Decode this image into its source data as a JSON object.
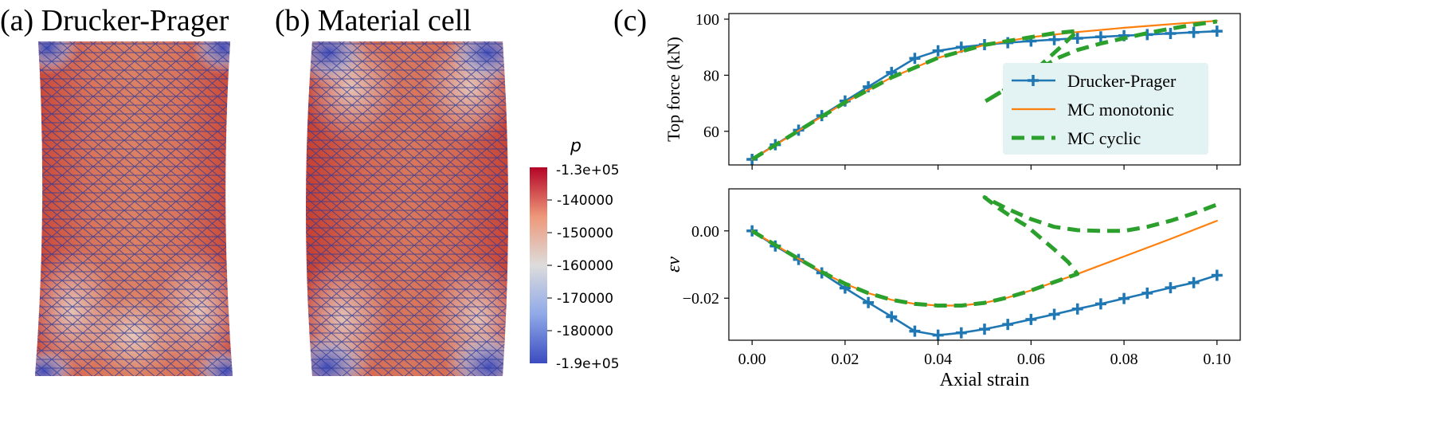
{
  "panel_a": {
    "label": "(a) Drucker-Prager"
  },
  "panel_b": {
    "label": "(b) Material cell"
  },
  "panel_c": {
    "label": "(c)"
  },
  "colorbar": {
    "title": "p",
    "max_label": "-1.3e+05",
    "min_label": "-1.9e+05",
    "vmax": -130000,
    "vmin": -190000,
    "ticks": [
      {
        "value": -140000,
        "label": "-140000"
      },
      {
        "value": -150000,
        "label": "-150000"
      },
      {
        "value": -160000,
        "label": "-160000"
      },
      {
        "value": -170000,
        "label": "-170000"
      },
      {
        "value": -180000,
        "label": "-180000"
      }
    ],
    "colors": [
      "#3b4cc0",
      "#dddcdc",
      "#b40426"
    ]
  },
  "chart_data": [
    {
      "type": "line",
      "xlabel": "",
      "ylabel": "Top force (kN)",
      "xlim": [
        -0.005,
        0.105
      ],
      "ylim": [
        48,
        102
      ],
      "xticks": [
        0.0,
        0.02,
        0.04,
        0.06,
        0.08,
        0.1
      ],
      "yticks": [
        {
          "value": 60,
          "label": "60"
        },
        {
          "value": 80,
          "label": "80"
        },
        {
          "value": 100,
          "label": "100"
        }
      ],
      "legend_position": "right",
      "series": [
        {
          "name": "Drucker-Prager",
          "color": "#1f77b4",
          "style": "solid-plus",
          "x": [
            0.0,
            0.005,
            0.01,
            0.015,
            0.02,
            0.025,
            0.03,
            0.035,
            0.04,
            0.045,
            0.05,
            0.055,
            0.06,
            0.065,
            0.07,
            0.075,
            0.08,
            0.085,
            0.09,
            0.095,
            0.1
          ],
          "y": [
            50.0,
            55.2,
            60.4,
            65.6,
            70.8,
            75.9,
            81.0,
            86.0,
            88.7,
            90.0,
            90.9,
            91.6,
            92.2,
            92.7,
            93.2,
            93.7,
            94.1,
            94.5,
            94.9,
            95.3,
            95.7
          ]
        },
        {
          "name": "MC monotonic",
          "color": "#ff7f0e",
          "style": "solid-thin",
          "x": [
            0.0,
            0.01,
            0.02,
            0.03,
            0.04,
            0.05,
            0.06,
            0.07,
            0.08,
            0.09,
            0.1
          ],
          "y": [
            50.0,
            60.2,
            70.3,
            79.2,
            86.2,
            90.8,
            93.6,
            95.4,
            96.9,
            98.2,
            99.4
          ]
        },
        {
          "name": "MC cyclic",
          "color": "#2ca02c",
          "style": "dashed-thick",
          "x": [
            0.0,
            0.01,
            0.02,
            0.03,
            0.04,
            0.05,
            0.06,
            0.065,
            0.07,
            0.066,
            0.062,
            0.058,
            0.054,
            0.05,
            0.05,
            0.054,
            0.058,
            0.062,
            0.066,
            0.07,
            0.075,
            0.08,
            0.085,
            0.09,
            0.095,
            0.1
          ],
          "y": [
            50.0,
            60.2,
            70.3,
            79.2,
            86.2,
            90.8,
            93.6,
            95.0,
            95.8,
            89.5,
            83.5,
            78.5,
            74.5,
            70.5,
            70.5,
            74.5,
            78.5,
            82.5,
            86.3,
            89.0,
            91.3,
            93.2,
            95.0,
            96.6,
            98.0,
            99.2
          ]
        }
      ]
    },
    {
      "type": "line",
      "xlabel": "Axial strain",
      "ylabel": "εv",
      "xlim": [
        -0.005,
        0.105
      ],
      "ylim": [
        -0.0325,
        0.0125
      ],
      "xticks": [
        {
          "value": 0.0,
          "label": "0.00"
        },
        {
          "value": 0.02,
          "label": "0.02"
        },
        {
          "value": 0.04,
          "label": "0.04"
        },
        {
          "value": 0.06,
          "label": "0.06"
        },
        {
          "value": 0.08,
          "label": "0.08"
        },
        {
          "value": 0.1,
          "label": "0.10"
        }
      ],
      "yticks": [
        {
          "value": 0.0,
          "label": "0.00"
        },
        {
          "value": -0.02,
          "label": "−0.02"
        }
      ],
      "series": [
        {
          "name": "Drucker-Prager",
          "color": "#1f77b4",
          "style": "solid-plus",
          "x": [
            0.0,
            0.005,
            0.01,
            0.015,
            0.02,
            0.025,
            0.03,
            0.035,
            0.04,
            0.045,
            0.05,
            0.055,
            0.06,
            0.065,
            0.07,
            0.075,
            0.08,
            0.085,
            0.09,
            0.095,
            0.1
          ],
          "y": [
            0.0,
            -0.0045,
            -0.0085,
            -0.0125,
            -0.017,
            -0.0213,
            -0.0255,
            -0.0298,
            -0.031,
            -0.0303,
            -0.0292,
            -0.0278,
            -0.0263,
            -0.0248,
            -0.0232,
            -0.0217,
            -0.0201,
            -0.0185,
            -0.0169,
            -0.0154,
            -0.0132
          ]
        },
        {
          "name": "MC monotonic",
          "color": "#ff7f0e",
          "style": "solid-thin",
          "x": [
            0.0,
            0.005,
            0.01,
            0.015,
            0.02,
            0.025,
            0.03,
            0.035,
            0.04,
            0.045,
            0.05,
            0.055,
            0.06,
            0.065,
            0.07,
            0.08,
            0.09,
            0.1
          ],
          "y": [
            0.0,
            -0.0042,
            -0.0083,
            -0.0122,
            -0.0157,
            -0.0185,
            -0.0205,
            -0.0217,
            -0.0222,
            -0.0222,
            -0.0214,
            -0.0198,
            -0.0177,
            -0.0152,
            -0.0128,
            -0.0076,
            -0.0024,
            0.003
          ]
        },
        {
          "name": "MC cyclic",
          "color": "#2ca02c",
          "style": "dashed-thick",
          "x": [
            0.0,
            0.005,
            0.01,
            0.015,
            0.02,
            0.025,
            0.03,
            0.035,
            0.04,
            0.045,
            0.05,
            0.055,
            0.06,
            0.065,
            0.07,
            0.068,
            0.065,
            0.062,
            0.059,
            0.056,
            0.053,
            0.05,
            0.05,
            0.055,
            0.06,
            0.065,
            0.07,
            0.075,
            0.08,
            0.085,
            0.09,
            0.095,
            0.1
          ],
          "y": [
            0.0,
            -0.0042,
            -0.0083,
            -0.0122,
            -0.0157,
            -0.0185,
            -0.0205,
            -0.0217,
            -0.0222,
            -0.0222,
            -0.0214,
            -0.0198,
            -0.0177,
            -0.0152,
            -0.0128,
            -0.0093,
            -0.0055,
            -0.002,
            0.0015,
            0.004,
            0.0068,
            0.01,
            0.01,
            0.0065,
            0.0035,
            0.0012,
            0.0002,
            0.0,
            0.0,
            0.0012,
            0.003,
            0.0052,
            0.0078
          ]
        }
      ]
    }
  ]
}
